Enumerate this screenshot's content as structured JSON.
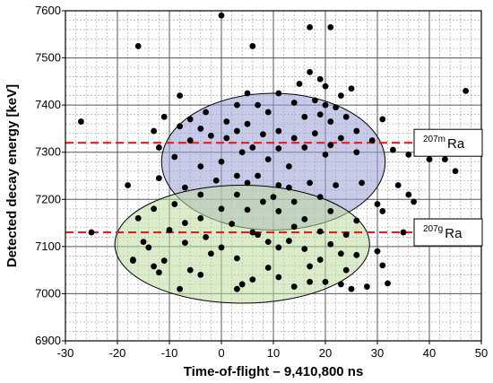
{
  "chart_data": {
    "type": "scatter",
    "xlabel": "Time-of-flight – 9,410,800 ns",
    "ylabel": "Detected decay energy [keV]",
    "xlim": [
      -30,
      50
    ],
    "ylim": [
      6900,
      7600
    ],
    "xticks": [
      "-30",
      "-20",
      "-10",
      "0",
      "10",
      "20",
      "30",
      "40",
      "50"
    ],
    "yticks": [
      "6900",
      "7000",
      "7100",
      "7200",
      "7300",
      "7400",
      "7500",
      "7600"
    ],
    "grid": "major solid + minor dashed",
    "colors": {
      "points": "#000000",
      "reference_line": "#e02020",
      "ellipse_upper_fill": "#9aa0d6",
      "ellipse_lower_fill": "#bedc9e"
    },
    "reference_lines": [
      {
        "y": 7320,
        "label_main": "Ra",
        "label_sup": "207m"
      },
      {
        "y": 7130,
        "label_main": "Ra",
        "label_sup": "207g"
      }
    ],
    "ellipses": [
      {
        "name": "upper",
        "cx": 10,
        "cy": 7280,
        "rx": 21.5,
        "ry": 145
      },
      {
        "name": "lower",
        "cx": 4,
        "cy": 7105,
        "rx": 24.5,
        "ry": 125
      }
    ],
    "points": [
      [
        0,
        7590
      ],
      [
        -16,
        7525
      ],
      [
        -27,
        7365
      ],
      [
        -25,
        7130
      ],
      [
        -18,
        7230
      ],
      [
        -17,
        7072
      ],
      [
        6,
        7525
      ],
      [
        17,
        7565
      ],
      [
        21,
        7565
      ],
      [
        17,
        7470
      ],
      [
        19,
        7455
      ],
      [
        15,
        7445
      ],
      [
        20,
        7440
      ],
      [
        25,
        7435
      ],
      [
        5,
        7425
      ],
      [
        11,
        7425
      ],
      [
        -8,
        7420
      ],
      [
        23,
        7420
      ],
      [
        18,
        7410
      ],
      [
        3,
        7400
      ],
      [
        7,
        7400
      ],
      [
        14,
        7405
      ],
      [
        20,
        7400
      ],
      [
        22,
        7395
      ],
      [
        -3,
        7385
      ],
      [
        9,
        7385
      ],
      [
        19,
        7380
      ],
      [
        -11,
        7375
      ],
      [
        16,
        7375
      ],
      [
        24,
        7375
      ],
      [
        -6,
        7370
      ],
      [
        1,
        7365
      ],
      [
        5,
        7360
      ],
      [
        21,
        7365
      ],
      [
        31,
        7370
      ],
      [
        -8,
        7355
      ],
      [
        -4,
        7350
      ],
      [
        3,
        7345
      ],
      [
        11,
        7345
      ],
      [
        26,
        7345
      ],
      [
        -13,
        7345
      ],
      [
        8,
        7338
      ],
      [
        18,
        7340
      ],
      [
        -2,
        7335
      ],
      [
        1,
        7330
      ],
      [
        14,
        7330
      ],
      [
        23,
        7330
      ],
      [
        -6,
        7325
      ],
      [
        -12,
        7310
      ],
      [
        6,
        7310
      ],
      [
        11,
        7308
      ],
      [
        16,
        7310
      ],
      [
        21,
        7315
      ],
      [
        29,
        7325
      ],
      [
        4,
        7300
      ],
      [
        26,
        7300
      ],
      [
        33,
        7305
      ],
      [
        -9,
        7290
      ],
      [
        0,
        7280
      ],
      [
        9,
        7285
      ],
      [
        20,
        7295
      ],
      [
        36,
        7295
      ],
      [
        -4,
        7270
      ],
      [
        13,
        7270
      ],
      [
        40,
        7285
      ],
      [
        43,
        7285
      ],
      [
        47,
        7430
      ],
      [
        45,
        7260
      ],
      [
        3,
        7250
      ],
      [
        7,
        7250
      ],
      [
        -12,
        7245
      ],
      [
        -1,
        7240
      ],
      [
        5,
        7235
      ],
      [
        17,
        7235
      ],
      [
        11,
        7230
      ],
      [
        22,
        7230
      ],
      [
        -7,
        7225
      ],
      [
        13,
        7225
      ],
      [
        27,
        7235
      ],
      [
        34,
        7230
      ],
      [
        36,
        7210
      ],
      [
        37,
        7195
      ],
      [
        -4,
        7210
      ],
      [
        3,
        7210
      ],
      [
        10,
        7205
      ],
      [
        19,
        7205
      ],
      [
        8,
        7195
      ],
      [
        14,
        7195
      ],
      [
        -9,
        7190
      ],
      [
        30,
        7190
      ],
      [
        -13,
        7180
      ],
      [
        0,
        7180
      ],
      [
        5,
        7178
      ],
      [
        11,
        7175
      ],
      [
        21,
        7175
      ],
      [
        31,
        7175
      ],
      [
        -16,
        7160
      ],
      [
        -4,
        7160
      ],
      [
        16,
        7158
      ],
      [
        26,
        7155
      ],
      [
        -7,
        7150
      ],
      [
        2,
        7148
      ],
      [
        14,
        7142
      ],
      [
        -10,
        7135
      ],
      [
        6,
        7130
      ],
      [
        19,
        7132
      ],
      [
        -3,
        7120
      ],
      [
        7,
        7125
      ],
      [
        24,
        7125
      ],
      [
        -15,
        7110
      ],
      [
        -7,
        7108
      ],
      [
        9,
        7110
      ],
      [
        13,
        7112
      ],
      [
        21,
        7105
      ],
      [
        35,
        7130
      ],
      [
        -14,
        7098
      ],
      [
        0,
        7098
      ],
      [
        11,
        7098
      ],
      [
        16,
        7095
      ],
      [
        -17,
        7070
      ],
      [
        -2,
        7085
      ],
      [
        23,
        7085
      ],
      [
        26,
        7082
      ],
      [
        30,
        7090
      ],
      [
        -11,
        7070
      ],
      [
        3,
        7075
      ],
      [
        19,
        7072
      ],
      [
        -13,
        7058
      ],
      [
        -6,
        7050
      ],
      [
        9,
        7055
      ],
      [
        17,
        7058
      ],
      [
        24,
        7050
      ],
      [
        -12,
        7045
      ],
      [
        31,
        7060
      ],
      [
        11,
        7035
      ],
      [
        17,
        7025
      ],
      [
        20,
        7025
      ],
      [
        -4,
        7040
      ],
      [
        6,
        7030
      ],
      [
        23,
        7020
      ],
      [
        25,
        7010
      ],
      [
        28,
        7015
      ],
      [
        32,
        7022
      ],
      [
        4,
        7020
      ],
      [
        -8,
        7010
      ],
      [
        14,
        7015
      ],
      [
        3,
        7010
      ]
    ]
  }
}
